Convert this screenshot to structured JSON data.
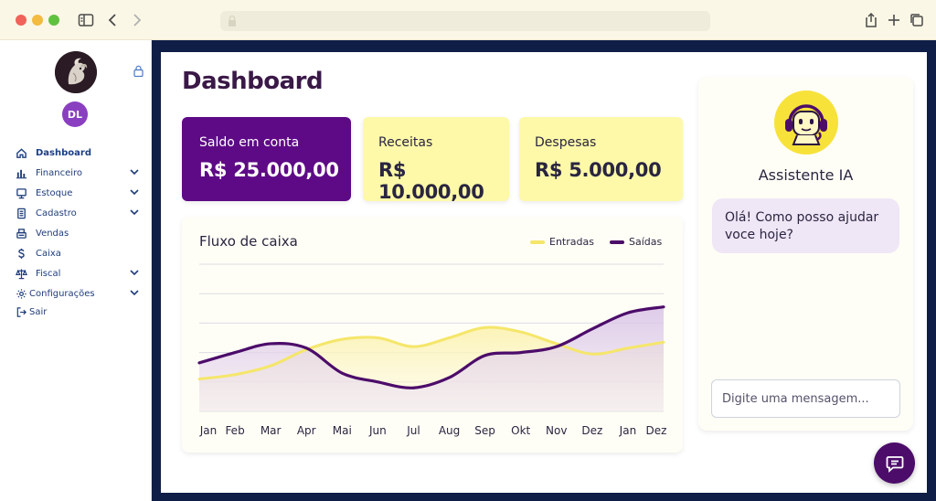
{
  "browser": {
    "url": ""
  },
  "sidebar": {
    "avatar_initials": "DL",
    "items": [
      {
        "label": "Dashboard",
        "icon": "home-icon",
        "active": true,
        "expandable": false
      },
      {
        "label": "Financeiro",
        "icon": "bar-chart-icon",
        "active": false,
        "expandable": true
      },
      {
        "label": "Estoque",
        "icon": "monitor-icon",
        "active": false,
        "expandable": true
      },
      {
        "label": "Cadastro",
        "icon": "document-icon",
        "active": false,
        "expandable": true
      },
      {
        "label": "Vendas",
        "icon": "register-icon",
        "active": false,
        "expandable": false
      },
      {
        "label": "Caixa",
        "icon": "dollar-icon",
        "active": false,
        "expandable": false
      },
      {
        "label": "Fiscal",
        "icon": "scale-icon",
        "active": false,
        "expandable": true
      },
      {
        "label": "Configurações",
        "icon": "gear-icon",
        "active": false,
        "expandable": true
      },
      {
        "label": "Sair",
        "icon": "logout-icon",
        "active": false,
        "expandable": false
      }
    ]
  },
  "dashboard": {
    "title": "Dashboard",
    "cards": {
      "balance": {
        "label": "Saldo em conta",
        "value": "R$ 25.000,00"
      },
      "income": {
        "label": "Receitas",
        "value": "R$ 10.000,00"
      },
      "expense": {
        "label": "Despesas",
        "value": "R$ 5.000,00"
      }
    }
  },
  "chart_data": {
    "type": "area",
    "title": "Fluxo de caixa",
    "categories": [
      "Jan",
      "Feb",
      "Mar",
      "Apr",
      "Mai",
      "Jun",
      "Jul",
      "Aug",
      "Sep",
      "Okt",
      "Nov",
      "Dez",
      "Jan",
      "Dez"
    ],
    "series": [
      {
        "name": "Entradas",
        "color": "#f5e66a",
        "values": [
          22,
          25,
          31,
          42,
          49,
          50,
          44,
          50,
          57,
          54,
          46,
          39,
          43,
          47
        ]
      },
      {
        "name": "Saídas",
        "color": "#4c0c6a",
        "values": [
          33,
          40,
          46,
          43,
          26,
          20,
          16,
          23,
          38,
          40,
          44,
          56,
          67,
          71
        ]
      }
    ],
    "ylim": [
      0,
      100
    ],
    "grid": true,
    "legend": "top-right"
  },
  "assistant": {
    "title": "Assistente IA",
    "message": "Olá! Como posso ajudar voce hoje?",
    "input_placeholder": "Digite uma mensagem..."
  },
  "colors": {
    "primary": "#5e0a86",
    "accent_yellow": "#fdf9a8",
    "frame": "#0f1e46"
  }
}
